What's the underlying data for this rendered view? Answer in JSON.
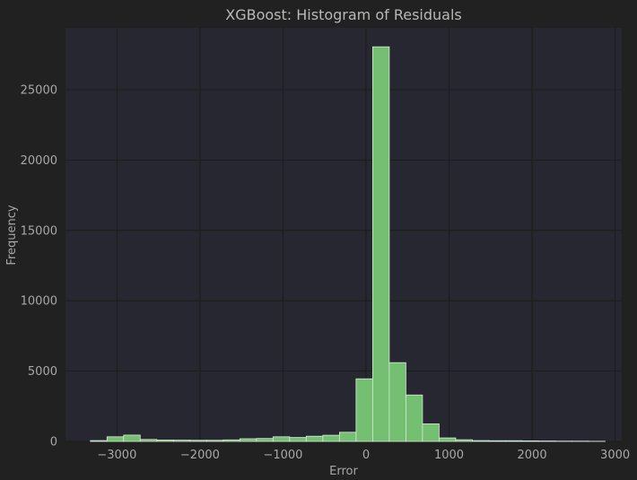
{
  "colors": {
    "background": "#212121",
    "plot_background": "#262730",
    "bar_fill": "#74bf72",
    "bar_edge": "#d8ecd8",
    "grid": "#1c1c1c",
    "text": "#a8a8a8"
  },
  "chart_data": {
    "type": "bar",
    "title": "XGBoost: Histogram of Residuals",
    "xlabel": "Error",
    "ylabel": "Frequency",
    "xlim": [
      -3620,
      3080
    ],
    "ylim": [
      0,
      29400
    ],
    "xticks": [
      -3000,
      -2000,
      -1000,
      0,
      1000,
      2000,
      3000
    ],
    "xtick_labels": [
      "−3000",
      "−2000",
      "−1000",
      "0",
      "1000",
      "2000",
      "3000"
    ],
    "yticks": [
      0,
      5000,
      10000,
      15000,
      20000,
      25000
    ],
    "ytick_labels": [
      "0",
      "5000",
      "10000",
      "15000",
      "20000",
      "25000"
    ],
    "grid": true,
    "bin_edges": [
      -3320,
      -3120,
      -2920,
      -2720,
      -2520,
      -2320,
      -2120,
      -1920,
      -1720,
      -1520,
      -1320,
      -1120,
      -920,
      -720,
      -520,
      -320,
      -120,
      80,
      280,
      480,
      680,
      880,
      1080,
      1280,
      1480,
      1680,
      1880,
      2080,
      2280,
      2480,
      2680,
      2880
    ],
    "counts": [
      60,
      330,
      450,
      140,
      100,
      90,
      80,
      80,
      110,
      190,
      210,
      330,
      280,
      370,
      440,
      650,
      4450,
      28050,
      5600,
      3300,
      1250,
      250,
      120,
      60,
      50,
      50,
      40,
      30,
      20,
      20,
      10
    ]
  }
}
